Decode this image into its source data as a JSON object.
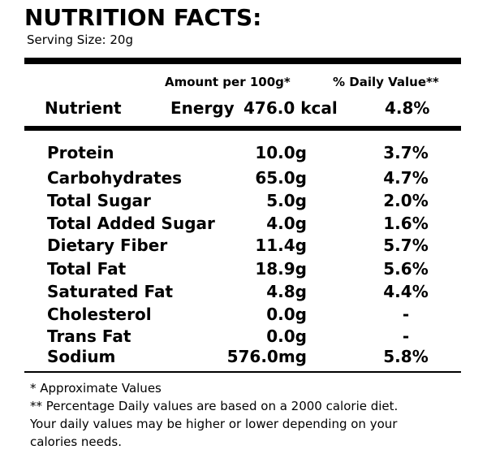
{
  "header": {
    "title": "NUTRITION FACTS:",
    "serving_size": "Serving Size: 20g"
  },
  "table": {
    "amount_header": "Amount per 100g*",
    "dv_header": "% Daily Value**",
    "nutrient_header": "Nutrient",
    "energy_label": "Energy",
    "energy_value": "476.0 kcal",
    "energy_dv": "4.8%",
    "rows": [
      [
        "Protein",
        "10.0g",
        "3.7%"
      ],
      [
        "Carbohydrates",
        "65.0g",
        "4.7%"
      ],
      [
        "Total Sugar",
        "5.0g",
        "2.0%"
      ],
      [
        "Total Added Sugar",
        "4.0g",
        "1.6%"
      ],
      [
        "Dietary Fiber",
        "11.4g",
        "5.7%"
      ],
      [
        "Total Fat",
        "18.9g",
        "5.6%"
      ],
      [
        "Saturated Fat",
        "4.8g",
        "4.4%"
      ],
      [
        "Cholesterol",
        "0.0g",
        "-"
      ],
      [
        "Trans Fat",
        "0.0g",
        "-"
      ],
      [
        "Sodium",
        "576.0mg",
        "5.8%"
      ]
    ]
  },
  "footnotes": [
    "*   Approximate Values",
    "** Percentage Daily values are based on a 2000 calorie diet.",
    "Your daily values may be higher or lower depending on your",
    "calories needs."
  ]
}
